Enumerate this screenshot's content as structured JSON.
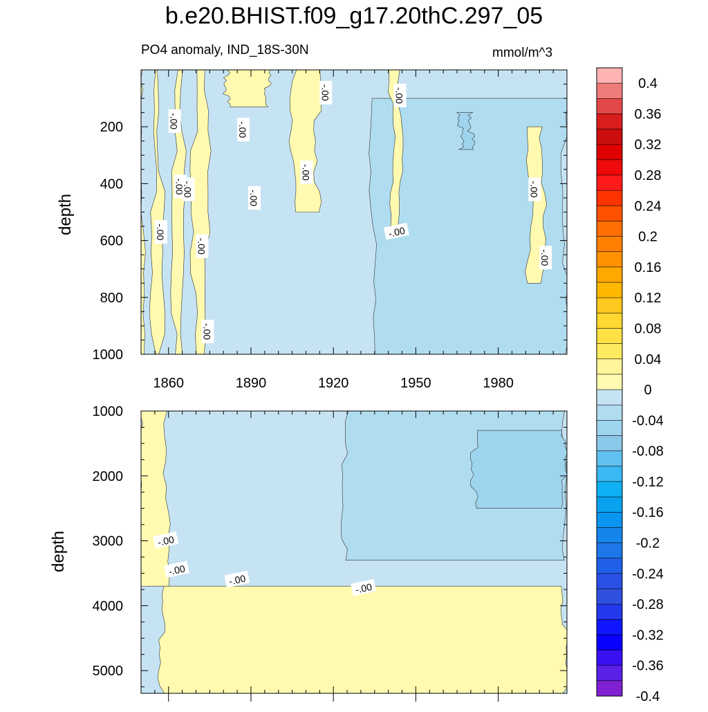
{
  "title": "b.e20.BHIST.f09_g17.20thC.297_05",
  "subtitle": "PO4 anomaly, IND_18S-30N",
  "units": "mmol/m^3",
  "colors": {
    "pos_low": "#fffab0",
    "neg_1": "#c6e3f3",
    "neg_2": "#b0dcf0",
    "neg_3": "#9ed4ee",
    "contour": "#333333"
  },
  "chart_data": [
    {
      "type": "heatmap",
      "panel": "top",
      "ylabel": "depth",
      "xlim": [
        1850,
        2005
      ],
      "ylim": [
        0,
        1000
      ],
      "y_inverted": true,
      "xticks": [
        1860,
        1890,
        1920,
        1950,
        1980
      ],
      "yticks": [
        200,
        400,
        600,
        800,
        1000
      ],
      "background_level": "-0.00 to -0.02",
      "regions": [
        {
          "level": "0 to 0.02",
          "x_range": [
            1850,
            1851
          ],
          "depth_range": [
            0,
            1000
          ]
        },
        {
          "level": "0 to 0.02",
          "x_range": [
            1855,
            1858
          ],
          "depth_range": [
            0,
            1000
          ]
        },
        {
          "level": "0 to 0.02",
          "x_range": [
            1863,
            1866
          ],
          "depth_range": [
            0,
            1000
          ]
        },
        {
          "level": "0 to 0.02",
          "x_range": [
            1870,
            1875
          ],
          "depth_range": [
            0,
            1000
          ]
        },
        {
          "level": "0 to 0.02",
          "x_range": [
            1882,
            1897
          ],
          "depth_range": [
            0,
            130
          ]
        },
        {
          "level": "0 to 0.02",
          "x_range": [
            1906,
            1915
          ],
          "depth_range": [
            0,
            500
          ]
        },
        {
          "level": "-0.02 to -0.04",
          "x_range": [
            1935,
            2005
          ],
          "depth_range": [
            100,
            1000
          ]
        },
        {
          "level": "-0.04 to -0.06",
          "x_range": [
            1967,
            1971
          ],
          "depth_range": [
            150,
            280
          ]
        },
        {
          "level": "0 to 0.02",
          "x_range": [
            1992,
            1997
          ],
          "depth_range": [
            200,
            750
          ]
        },
        {
          "level": "0 to 0.02",
          "x_range": [
            1942,
            1945
          ],
          "depth_range": [
            0,
            550
          ]
        }
      ],
      "contour_labels": [
        {
          "text": "-.00",
          "x": 1862,
          "depth": 180
        },
        {
          "text": "-.00",
          "x": 1864,
          "depth": 410
        },
        {
          "text": "-.00",
          "x": 1867,
          "depth": 420
        },
        {
          "text": "-.00",
          "x": 1857,
          "depth": 570
        },
        {
          "text": "-.00",
          "x": 1872,
          "depth": 620
        },
        {
          "text": "-.00",
          "x": 1874,
          "depth": 920
        },
        {
          "text": "-.00",
          "x": 1887,
          "depth": 210
        },
        {
          "text": "-.00",
          "x": 1891,
          "depth": 450
        },
        {
          "text": "-.00",
          "x": 1917,
          "depth": 80
        },
        {
          "text": "-.00",
          "x": 1910,
          "depth": 360
        },
        {
          "text": "-.00",
          "x": 1944,
          "depth": 90
        },
        {
          "text": "-.00",
          "x": 1943,
          "depth": 570
        },
        {
          "text": "-.00",
          "x": 1993,
          "depth": 420
        },
        {
          "text": "-.00",
          "x": 1997,
          "depth": 660
        }
      ]
    },
    {
      "type": "heatmap",
      "panel": "bottom",
      "ylabel": "depth",
      "xlim": [
        1850,
        2005
      ],
      "ylim": [
        1000,
        5350
      ],
      "y_inverted": true,
      "xticks": [
        1860,
        1890,
        1920,
        1950,
        1980
      ],
      "yticks": [
        1000,
        2000,
        3000,
        4000,
        5000
      ],
      "background_level": "-0.00 to -0.02",
      "regions": [
        {
          "level": "0 to 0.02",
          "x_range": [
            1850,
            1860
          ],
          "depth_range": [
            1000,
            3700
          ]
        },
        {
          "level": "0 to 0.02",
          "x_range": [
            1858,
            2005
          ],
          "depth_range": [
            3700,
            5350
          ]
        },
        {
          "level": "-0.02 to -0.04",
          "x_range": [
            1925,
            2005
          ],
          "depth_range": [
            1000,
            3300
          ]
        },
        {
          "level": "-0.04 to -0.06",
          "x_range": [
            1972,
            2005
          ],
          "depth_range": [
            1300,
            2500
          ]
        }
      ],
      "contour_labels": [
        {
          "text": "-.00",
          "x": 1859,
          "depth": 3000
        },
        {
          "text": "-.00",
          "x": 1863,
          "depth": 3450
        },
        {
          "text": "-.00",
          "x": 1885,
          "depth": 3600
        },
        {
          "text": "-.00",
          "x": 1931,
          "depth": 3730
        }
      ]
    },
    {
      "type": "colorbar",
      "levels": [
        -0.4,
        -0.38,
        -0.36,
        -0.34,
        -0.32,
        -0.3,
        -0.28,
        -0.26,
        -0.24,
        -0.22,
        -0.2,
        -0.18,
        -0.16,
        -0.14,
        -0.12,
        -0.1,
        -0.08,
        -0.06,
        -0.04,
        -0.02,
        0,
        0.02,
        0.04,
        0.06,
        0.08,
        0.1,
        0.12,
        0.14,
        0.16,
        0.18,
        0.2,
        0.22,
        0.24,
        0.26,
        0.28,
        0.3,
        0.32,
        0.34,
        0.36,
        0.38,
        0.4
      ],
      "tick_labels": [
        "0.4",
        "0.36",
        "0.32",
        "0.28",
        "0.24",
        "0.2",
        "0.16",
        "0.12",
        "0.08",
        "0.04",
        "0",
        "-0.04",
        "-0.08",
        "-0.12",
        "-0.16",
        "-0.2",
        "-0.24",
        "-0.28",
        "-0.32",
        "-0.36",
        "-0.4"
      ],
      "colors_top_to_bottom": [
        "#ffb3b3",
        "#f07b7b",
        "#e34848",
        "#d91c1c",
        "#cc0d0d",
        "#e00000",
        "#ee0a0a",
        "#ff1a1a",
        "#ff3300",
        "#ff5200",
        "#ff6e00",
        "#ff8000",
        "#ff9200",
        "#ffa800",
        "#ffb800",
        "#ffc81e",
        "#ffd830",
        "#ffe045",
        "#ffea60",
        "#fff59a",
        "#fffab0",
        "#c6e3f3",
        "#b0dcf0",
        "#9ed4ee",
        "#8ac8ea",
        "#60c1f0",
        "#3ab8f2",
        "#10b0f5",
        "#08a2f0",
        "#0a95f0",
        "#1585eb",
        "#1e77ea",
        "#2060e8",
        "#2a50e6",
        "#3050e0",
        "#2238ea",
        "#1016ff",
        "#0a00ff",
        "#3a10f5",
        "#5a20e8",
        "#8020d0"
      ]
    }
  ]
}
